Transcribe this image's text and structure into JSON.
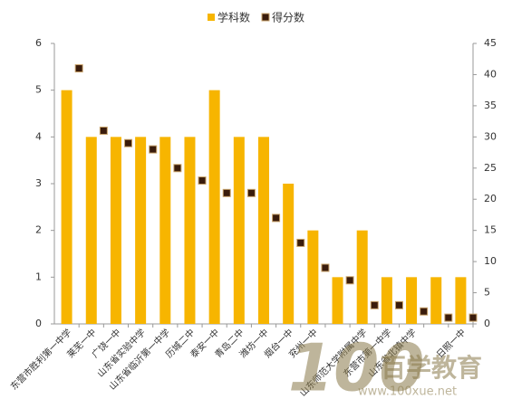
{
  "chart_data": {
    "type": "bar_scatter",
    "categories": [
      "东营市胜利第一中学",
      "莱芜一中",
      "广饶一中",
      "山东省实验中学",
      "山东省临沂第一中学",
      "历城二中",
      "泰安一中",
      "青岛二中",
      "潍坊一中",
      "烟台一中",
      "兖州一中",
      null,
      "山东师范大学附属中学",
      "东营市第一中学",
      "山东省北镇中学",
      null,
      "日照一中"
    ],
    "series": [
      {
        "name": "学科数",
        "color": "#f7b500",
        "values": [
          5,
          4,
          4,
          4,
          4,
          4,
          5,
          4,
          4,
          3,
          2,
          1,
          2,
          1,
          1,
          1,
          1
        ]
      },
      {
        "name": "得分数",
        "color": "#3a1c0c",
        "axis": "y2",
        "values": [
          41,
          31,
          29,
          28,
          25,
          23,
          21,
          21,
          17,
          13,
          9,
          7,
          3,
          3,
          2,
          1,
          1
        ]
      }
    ],
    "ylim": [
      0,
      6
    ],
    "yticks": [
      0,
      1,
      2,
      3,
      4,
      5,
      6
    ],
    "y2lim": [
      0,
      45
    ],
    "y2ticks": [
      0,
      5,
      10,
      15,
      20,
      25,
      30,
      35,
      40,
      45
    ],
    "legend": "top",
    "watermark": {
      "logo": "100",
      "brand": "百学教育",
      "url": "www.100xue.net"
    }
  }
}
